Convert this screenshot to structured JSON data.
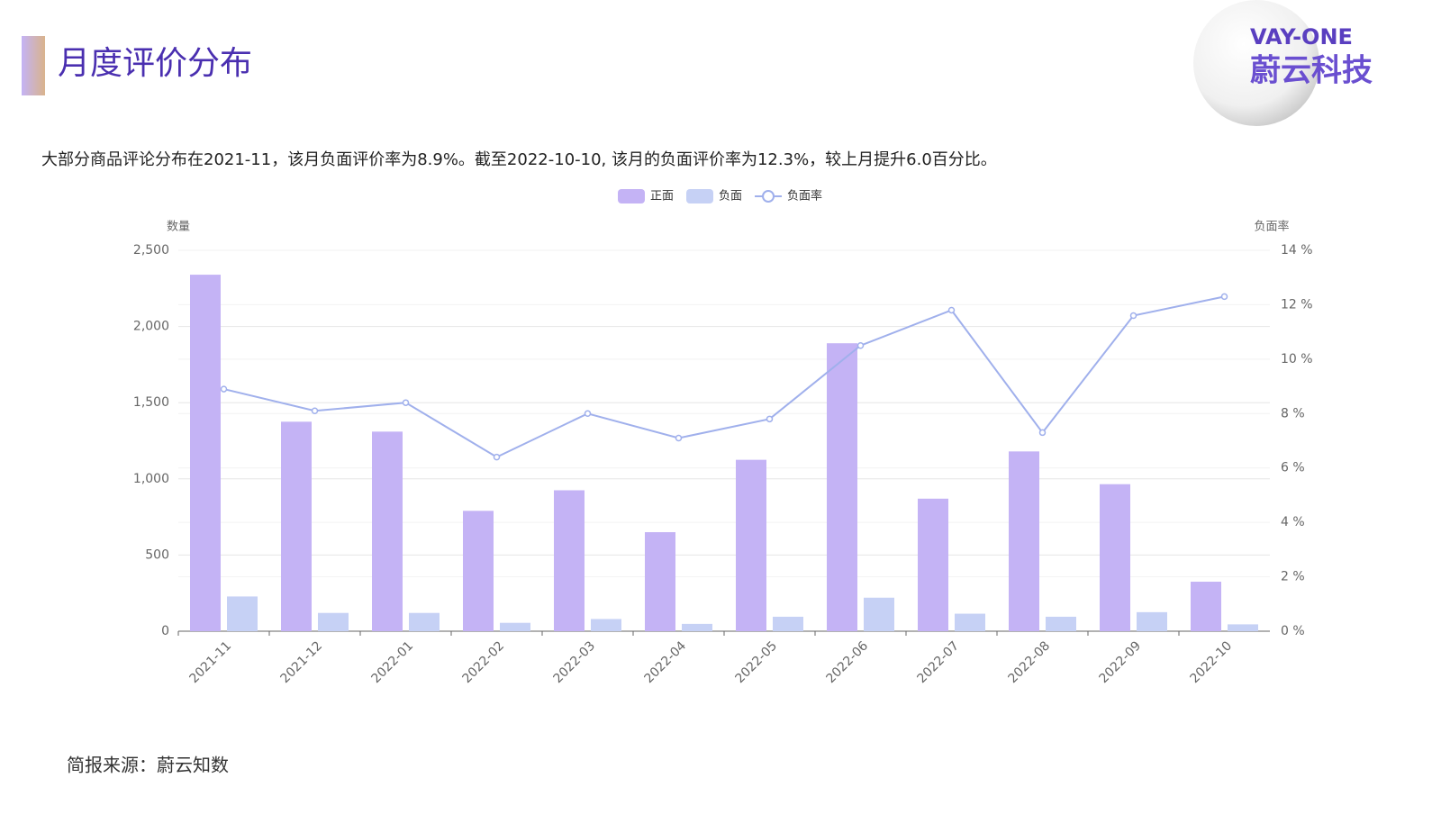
{
  "header": {
    "title": "月度评价分布",
    "logo_top": "VAY-ONE",
    "logo_bottom": "蔚云科技"
  },
  "summary": "大部分商品评论分布在2021-11，该月负面评价率为8.9%。截至2022-10-10, 该月的负面评价率为12.3%，较上月提升6.0百分比。",
  "footer": "简报来源：蔚云知数",
  "chart_data": {
    "type": "bar",
    "y_label": "数量",
    "y2_label": "负面率",
    "categories": [
      "2021-11",
      "2021-12",
      "2022-01",
      "2022-02",
      "2022-03",
      "2022-04",
      "2022-05",
      "2022-06",
      "2022-07",
      "2022-08",
      "2022-09",
      "2022-10"
    ],
    "series": [
      {
        "name": "正面",
        "type": "bar",
        "color": "#c4b3f5",
        "values": [
          2340,
          1375,
          1310,
          790,
          925,
          650,
          1125,
          1890,
          870,
          1180,
          965,
          325
        ]
      },
      {
        "name": "负面",
        "type": "bar",
        "color": "#c6d1f5",
        "values": [
          228,
          120,
          120,
          55,
          80,
          48,
          95,
          220,
          115,
          95,
          125,
          45
        ]
      },
      {
        "name": "负面率",
        "type": "line",
        "axis": "y2",
        "color": "#a0b0ec",
        "values": [
          8.9,
          8.1,
          8.4,
          6.4,
          8.0,
          7.1,
          7.8,
          10.5,
          11.8,
          7.3,
          11.6,
          12.3
        ]
      }
    ],
    "ylim": [
      0,
      2500
    ],
    "yticks": [
      0,
      500,
      {
        "value": 1000,
        "label": "1,000"
      },
      {
        "value": 1500,
        "label": "1,500"
      },
      {
        "value": 2000,
        "label": "2,000"
      },
      {
        "value": 2500,
        "label": "2,500"
      }
    ],
    "y2lim": [
      0,
      14
    ],
    "y2ticks": [
      {
        "value": 0,
        "label": "0 %"
      },
      {
        "value": 2,
        "label": "2 %"
      },
      {
        "value": 4,
        "label": "4 %"
      },
      {
        "value": 6,
        "label": "6 %"
      },
      {
        "value": 8,
        "label": "8 %"
      },
      {
        "value": 10,
        "label": "10 %"
      },
      {
        "value": 12,
        "label": "12 %"
      },
      {
        "value": 14,
        "label": "14 %"
      }
    ],
    "grid": true,
    "legend": "top"
  }
}
